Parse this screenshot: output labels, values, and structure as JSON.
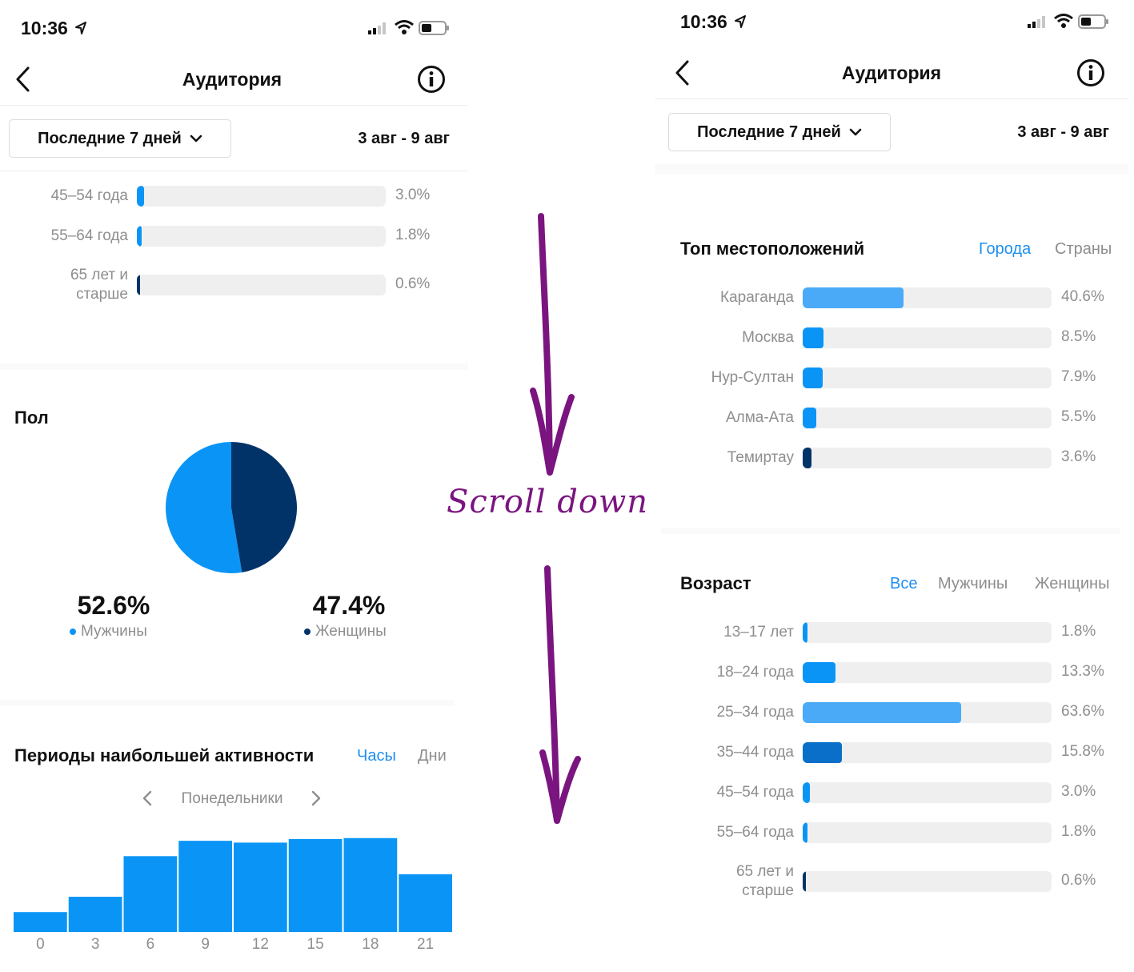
{
  "annotation": {
    "text": "Scroll down",
    "color": "#7a1580"
  },
  "colors": {
    "accent": "#1f8ff0",
    "male": "#0a95f6",
    "female": "#023368"
  },
  "left": {
    "status": {
      "time": "10:36"
    },
    "header": {
      "title": "Аудитория"
    },
    "range": {
      "label": "Последние 7 дней",
      "dates": "3 авг - 9 авг"
    },
    "age_rows": [
      {
        "label": "45–54 года",
        "value": 3.0,
        "pct": "3.0%",
        "color": "#0a95f6"
      },
      {
        "label": "55–64 года",
        "value": 1.8,
        "pct": "1.8%",
        "color": "#0a95f6"
      },
      {
        "label": "65 лет и старше",
        "value": 0.6,
        "pct": "0.6%",
        "color": "#023368"
      }
    ],
    "gender": {
      "title": "Пол",
      "male": {
        "pct": "52.6%",
        "label": "Мужчины",
        "value": 52.6
      },
      "female": {
        "pct": "47.4%",
        "label": "Женщины",
        "value": 47.4
      }
    },
    "activity": {
      "title": "Периоды наибольшей активности",
      "tabs": [
        "Часы",
        "Дни"
      ],
      "active_tab": "Часы",
      "day": "Понедельники"
    }
  },
  "right": {
    "status": {
      "time": "10:36"
    },
    "header": {
      "title": "Аудитория"
    },
    "range": {
      "label": "Последние 7 дней",
      "dates": "3 авг - 9 авг"
    },
    "locations": {
      "title": "Топ местоположений",
      "tabs": [
        "Города",
        "Страны"
      ],
      "active_tab": "Города",
      "rows": [
        {
          "label": "Караганда",
          "value": 40.6,
          "pct": "40.6%",
          "color": "#4aaaf8"
        },
        {
          "label": "Москва",
          "value": 8.5,
          "pct": "8.5%",
          "color": "#0a95f6"
        },
        {
          "label": "Нур-Султан",
          "value": 7.9,
          "pct": "7.9%",
          "color": "#0a95f6"
        },
        {
          "label": "Алма-Ата",
          "value": 5.5,
          "pct": "5.5%",
          "color": "#0a95f6"
        },
        {
          "label": "Темиртау",
          "value": 3.6,
          "pct": "3.6%",
          "color": "#023368"
        }
      ]
    },
    "age": {
      "title": "Возраст",
      "tabs": [
        "Все",
        "Мужчины",
        "Женщины"
      ],
      "active_tab": "Все",
      "rows": [
        {
          "label": "13–17 лет",
          "value": 1.8,
          "pct": "1.8%",
          "color": "#0a95f6"
        },
        {
          "label": "18–24 года",
          "value": 13.3,
          "pct": "13.3%",
          "color": "#0a95f6"
        },
        {
          "label": "25–34 года",
          "value": 63.6,
          "pct": "63.6%",
          "color": "#4aaaf8"
        },
        {
          "label": "35–44 года",
          "value": 15.8,
          "pct": "15.8%",
          "color": "#0a6fc9"
        },
        {
          "label": "45–54 года",
          "value": 3.0,
          "pct": "3.0%",
          "color": "#0a95f6"
        },
        {
          "label": "55–64 года",
          "value": 1.8,
          "pct": "1.8%",
          "color": "#0a95f6"
        },
        {
          "label": "65 лет и старше",
          "value": 0.6,
          "pct": "0.6%",
          "color": "#023368"
        }
      ]
    }
  },
  "chart_data": [
    {
      "type": "pie",
      "title": "Пол",
      "labels": [
        "Мужчины",
        "Женщины"
      ],
      "values": [
        52.6,
        47.4
      ],
      "colors": [
        "#0a95f6",
        "#023368"
      ]
    },
    {
      "type": "bar",
      "title": "Периоды наибольшей активности",
      "subtitle": "Понедельники",
      "categories": [
        "0",
        "3",
        "6",
        "9",
        "12",
        "15",
        "18",
        "21"
      ],
      "values": [
        22,
        39,
        84,
        101,
        99,
        103,
        104,
        64
      ],
      "ylim": [
        0,
        110
      ],
      "color": "#0a95f6"
    }
  ]
}
